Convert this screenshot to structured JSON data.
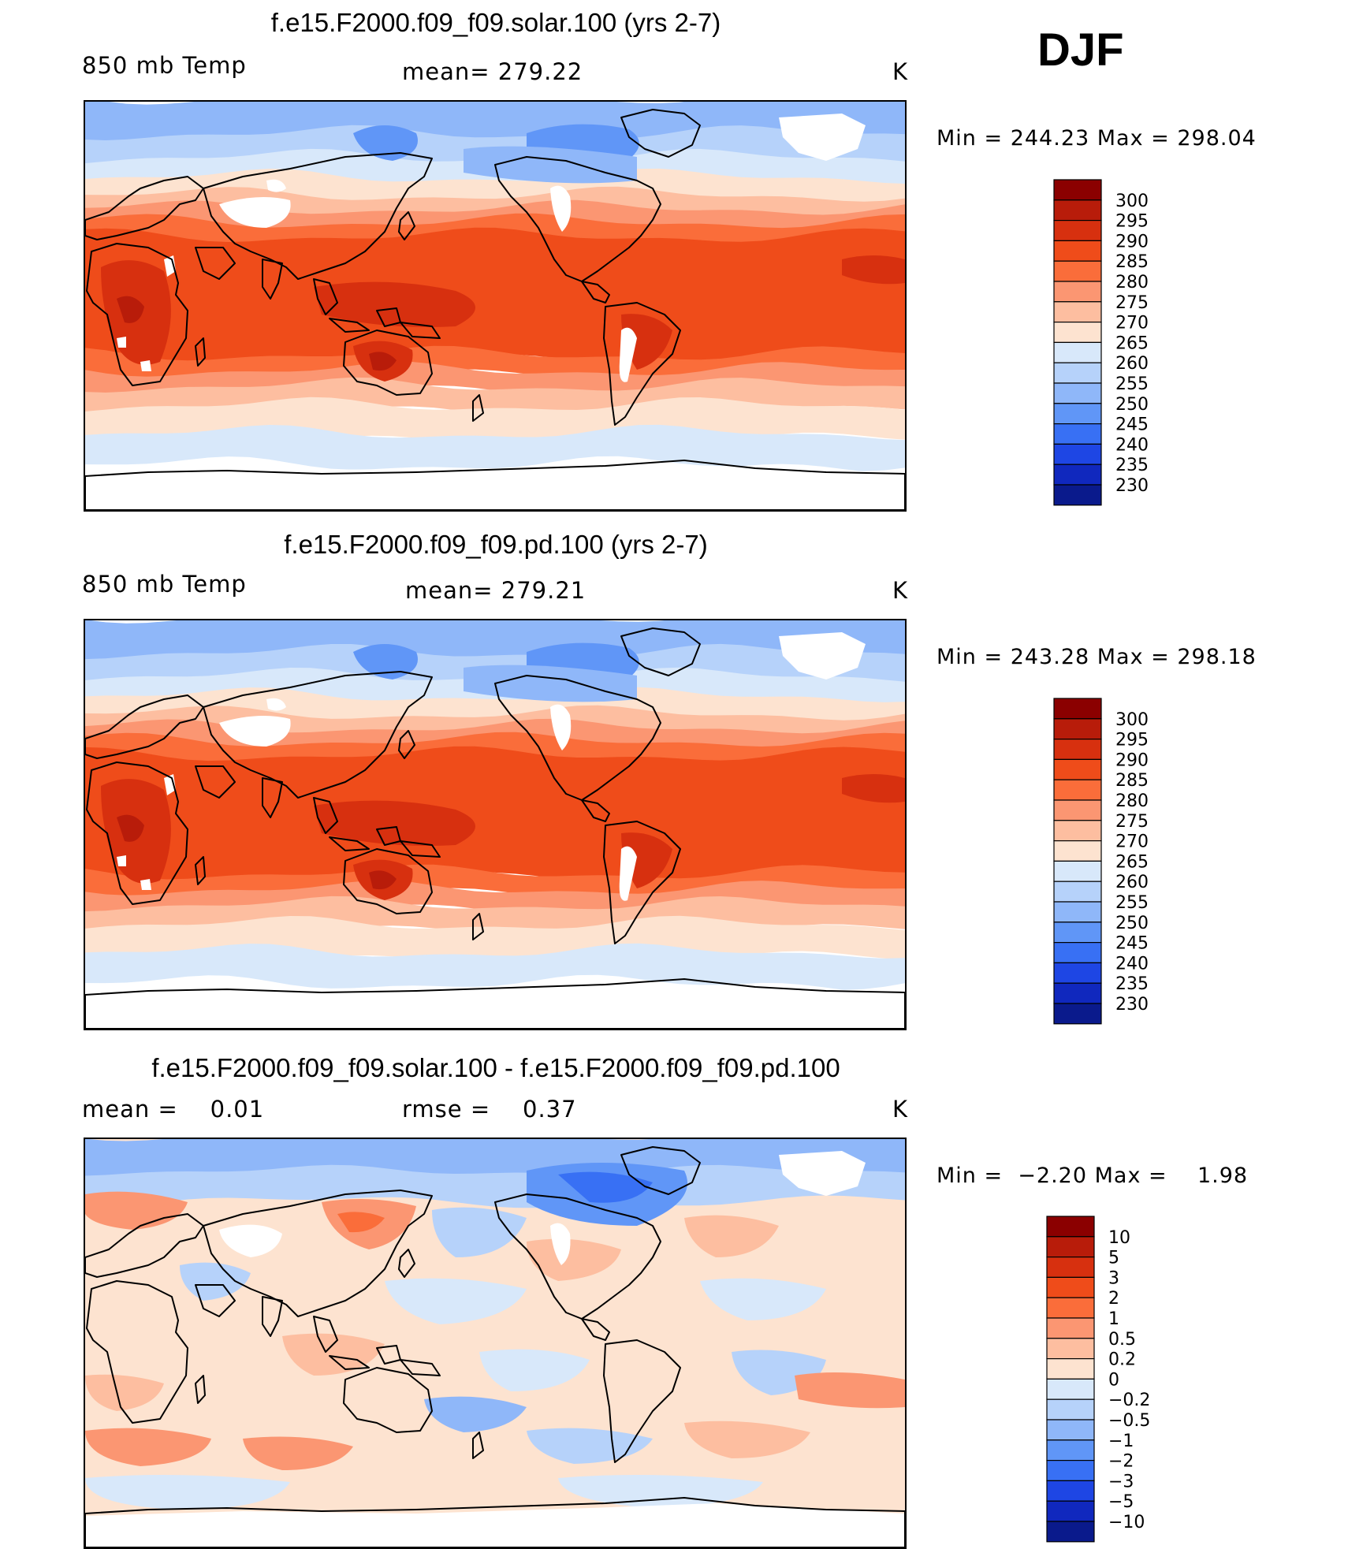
{
  "season": "DJF",
  "panels": [
    {
      "title": "f.e15.F2000.f09_f09.solar.100 (yrs 2-7)",
      "left_label": "850 mb Temp",
      "center_label": "mean= 279.22",
      "units": "K",
      "minmax": "Min = 244.23 Max = 298.04"
    },
    {
      "title": "f.e15.F2000.f09_f09.pd.100 (yrs 2-7)",
      "left_label": "850 mb Temp",
      "center_label": "mean= 279.21",
      "units": "K",
      "minmax": "Min = 243.28 Max = 298.18"
    },
    {
      "title": "f.e15.F2000.f09_f09.solar.100 - f.e15.F2000.f09_f09.pd.100",
      "left_label": "mean =    0.01",
      "center_label": "rmse =    0.37",
      "units": "K",
      "minmax": "Min =  −2.20 Max =    1.98"
    }
  ],
  "chart_data": [
    {
      "type": "heatmap",
      "title": "f.e15.F2000.f09_f09.solar.100 (yrs 2-7)",
      "units": "K",
      "mean": 279.22,
      "min": 244.23,
      "max": 298.04,
      "colorbar": {
        "labels": [
          "300",
          "295",
          "290",
          "285",
          "280",
          "275",
          "270",
          "265",
          "260",
          "255",
          "250",
          "245",
          "240",
          "235",
          "230"
        ],
        "colors": [
          "#8b0000",
          "#b81c0a",
          "#d7300f",
          "#ef4c1a",
          "#fa6d3a",
          "#fb9672",
          "#fdbea0",
          "#fde3d0",
          "#d8e8fa",
          "#b6d2fa",
          "#8fb7f9",
          "#6096f7",
          "#3870f4",
          "#1e46e4",
          "#1028be",
          "#0a1a8c"
        ]
      },
      "legend_position": "right"
    },
    {
      "type": "heatmap",
      "title": "f.e15.F2000.f09_f09.pd.100 (yrs 2-7)",
      "units": "K",
      "mean": 279.21,
      "min": 243.28,
      "max": 298.18,
      "colorbar": {
        "labels": [
          "300",
          "295",
          "290",
          "285",
          "280",
          "275",
          "270",
          "265",
          "260",
          "255",
          "250",
          "245",
          "240",
          "235",
          "230"
        ],
        "colors": [
          "#8b0000",
          "#b81c0a",
          "#d7300f",
          "#ef4c1a",
          "#fa6d3a",
          "#fb9672",
          "#fdbea0",
          "#fde3d0",
          "#d8e8fa",
          "#b6d2fa",
          "#8fb7f9",
          "#6096f7",
          "#3870f4",
          "#1e46e4",
          "#1028be",
          "#0a1a8c"
        ]
      },
      "legend_position": "right"
    },
    {
      "type": "heatmap",
      "title": "f.e15.F2000.f09_f09.solar.100 - f.e15.F2000.f09_f09.pd.100",
      "units": "K",
      "mean": 0.01,
      "rmse": 0.37,
      "min": -2.2,
      "max": 1.98,
      "colorbar": {
        "labels": [
          "10",
          "5",
          "3",
          "2",
          "1",
          "0.5",
          "0.2",
          "0",
          "−0.2",
          "−0.5",
          "−1",
          "−2",
          "−3",
          "−5",
          "−10"
        ],
        "colors": [
          "#8b0000",
          "#b81c0a",
          "#d7300f",
          "#ef4c1a",
          "#fa6d3a",
          "#fb9672",
          "#fdbea0",
          "#fde3d0",
          "#d8e8fa",
          "#b6d2fa",
          "#8fb7f9",
          "#6096f7",
          "#3870f4",
          "#1e46e4",
          "#1028be",
          "#0a1a8c"
        ]
      },
      "legend_position": "right"
    }
  ]
}
